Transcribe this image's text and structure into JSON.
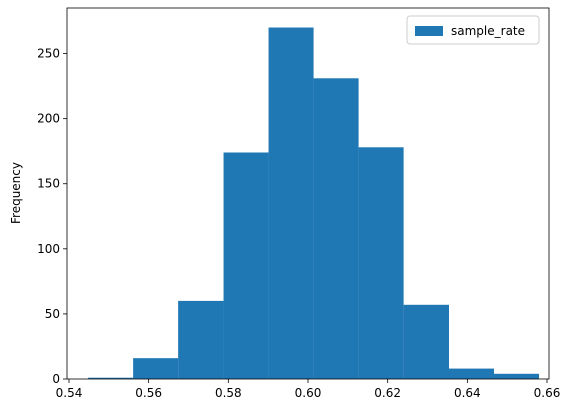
{
  "chart_data": {
    "type": "histogram",
    "ylabel": "Frequency",
    "bins": [
      0.5448,
      0.5561,
      0.5674,
      0.5788,
      0.5901,
      0.6014,
      0.6127,
      0.624,
      0.6354,
      0.6467,
      0.658
    ],
    "series": [
      {
        "name": "sample_rate",
        "color": "#1f77b4",
        "values": [
          1,
          16,
          60,
          174,
          270,
          231,
          178,
          57,
          8,
          4
        ]
      }
    ],
    "xlim": [
      0.5395,
      0.6605
    ],
    "xticks": [
      0.54,
      0.56,
      0.58,
      {
        "value": 0.6,
        "label": "0.60"
      },
      0.62,
      0.64,
      0.66
    ],
    "ylim": [
      0,
      285
    ],
    "yticks": [
      0,
      50,
      100,
      150,
      200,
      250
    ],
    "legend": "upper right"
  }
}
